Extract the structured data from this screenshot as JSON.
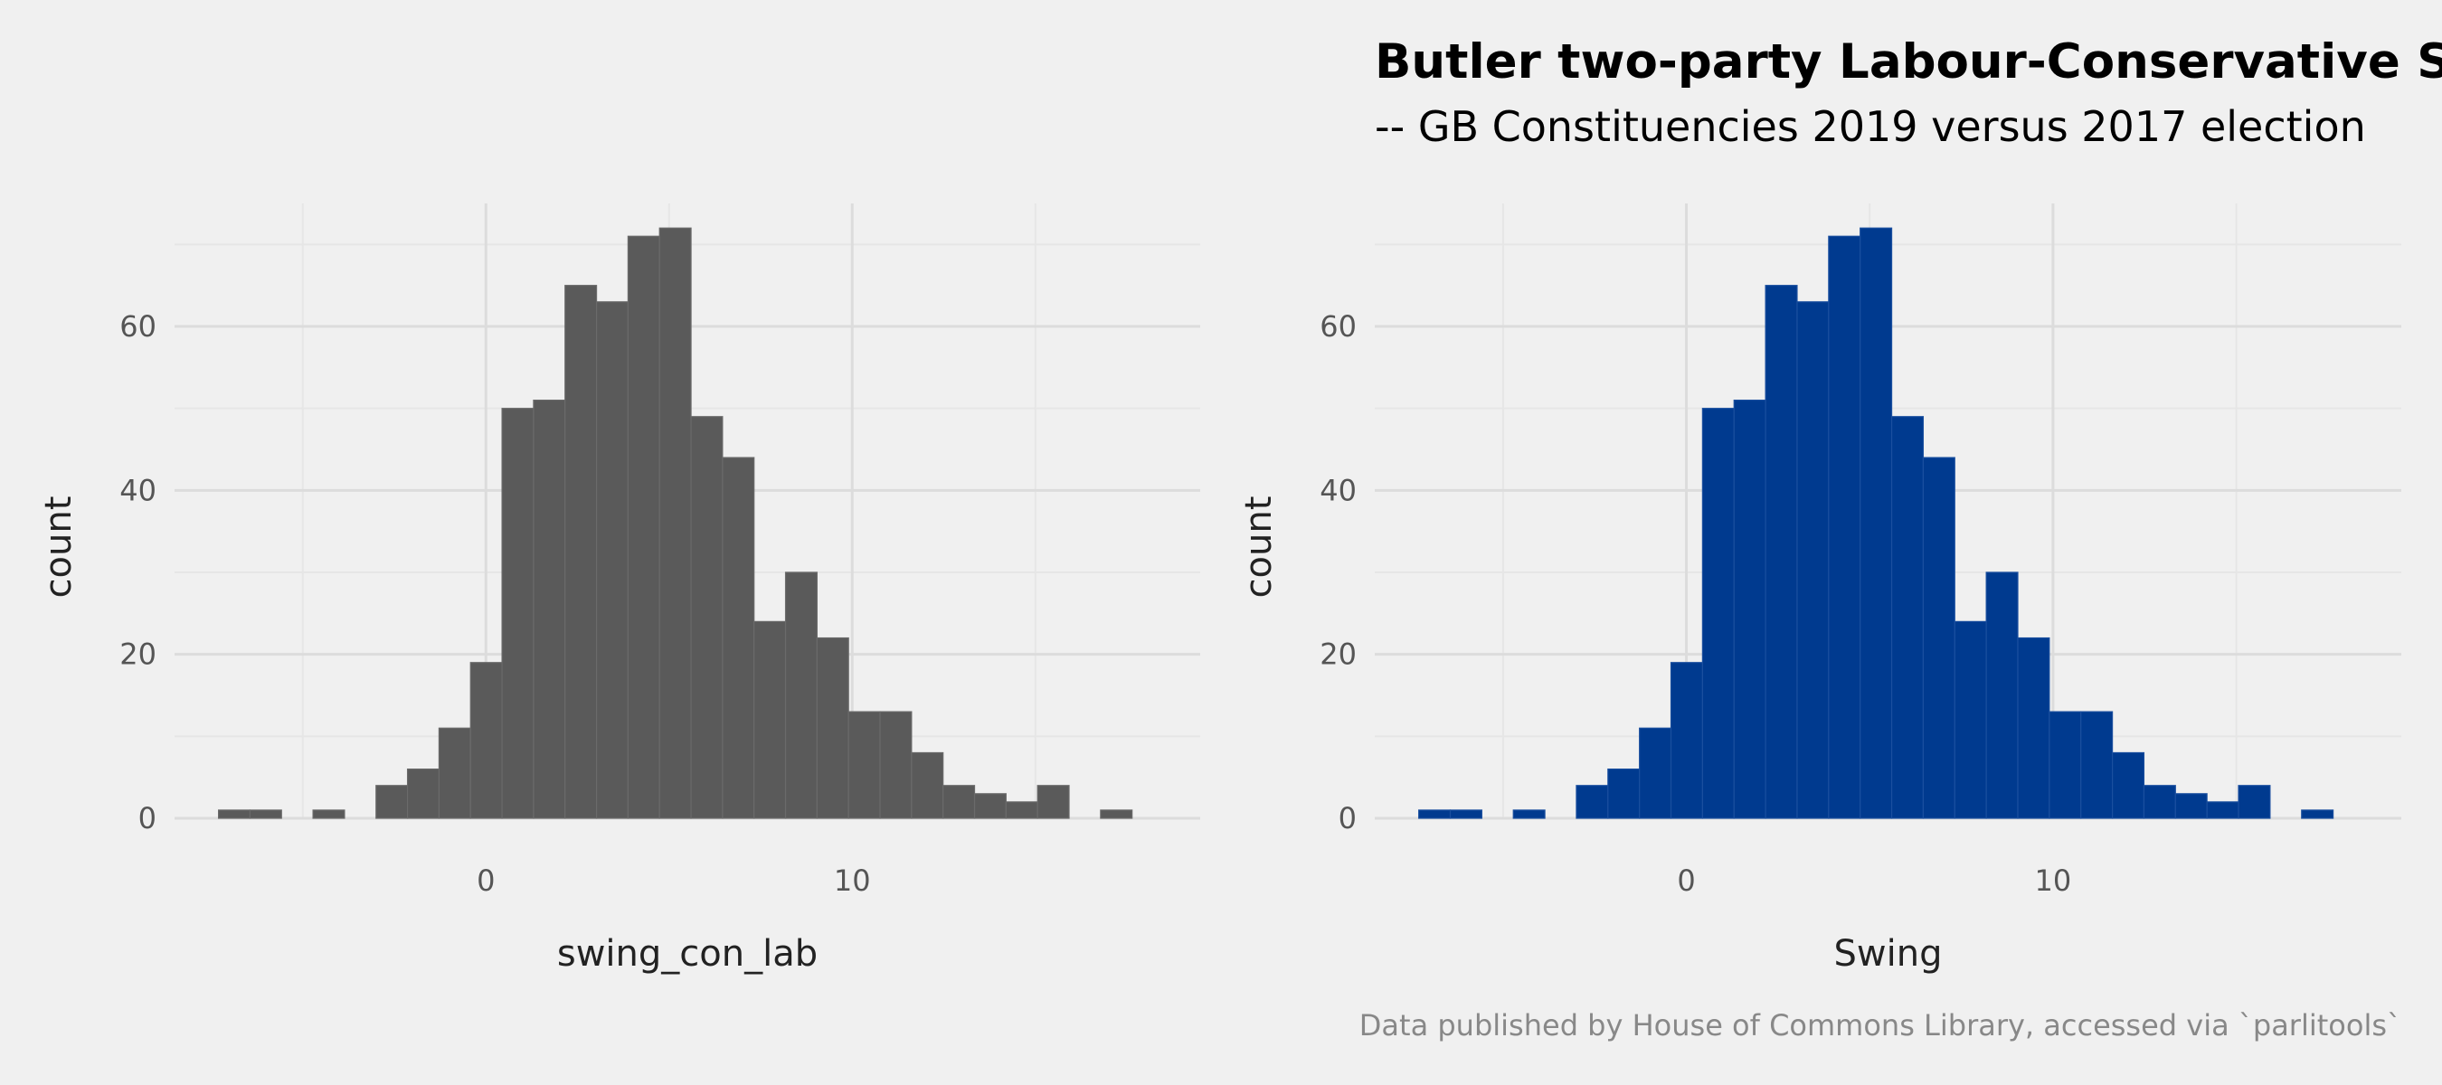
{
  "title": "Butler two-party Labour-Conservative Swing",
  "subtitle": "-- GB Constituencies 2019 versus 2017 election",
  "caption": "Data published by House of Commons Library, accessed via `parlitools`",
  "colors": {
    "background": "#f0f0f0",
    "panel_left_fill": "#5a5a5a",
    "panel_right_fill": "#003a8f",
    "bar_edge_left": "#6a6a6a",
    "bar_edge_right": "#1a4f9f"
  },
  "chart_data": [
    {
      "type": "bar",
      "histogram": true,
      "xlabel": "swing_con_lab",
      "ylabel": "count",
      "x_ticks": [
        0,
        10
      ],
      "y_ticks": [
        0,
        20,
        40,
        60
      ],
      "xlim": [
        -8.5,
        19.5
      ],
      "ylim": [
        0,
        75
      ],
      "grid": true,
      "bin_width": 0.86,
      "bin_start": -7.3,
      "counts": [
        1,
        1,
        0,
        1,
        0,
        4,
        6,
        11,
        19,
        50,
        51,
        65,
        63,
        71,
        72,
        49,
        44,
        24,
        30,
        22,
        13,
        13,
        8,
        4,
        3,
        2,
        4,
        0,
        1
      ]
    },
    {
      "type": "bar",
      "histogram": true,
      "xlabel": "Swing",
      "ylabel": "count",
      "x_ticks": [
        0,
        10
      ],
      "y_ticks": [
        0,
        20,
        40,
        60
      ],
      "xlim": [
        -8.5,
        19.5
      ],
      "ylim": [
        0,
        75
      ],
      "grid": true,
      "bin_width": 0.86,
      "bin_start": -7.3,
      "counts": [
        1,
        1,
        0,
        1,
        0,
        4,
        6,
        11,
        19,
        50,
        51,
        65,
        63,
        71,
        72,
        49,
        44,
        24,
        30,
        22,
        13,
        13,
        8,
        4,
        3,
        2,
        4,
        0,
        1
      ]
    }
  ]
}
